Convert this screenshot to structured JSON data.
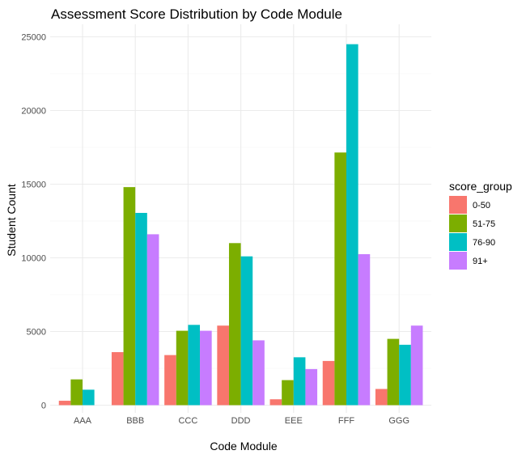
{
  "chart_data": {
    "type": "bar",
    "title": "Assessment Score Distribution by Code Module",
    "xlabel": "Code Module",
    "ylabel": "Student Count",
    "categories": [
      "AAA",
      "BBB",
      "CCC",
      "DDD",
      "EEE",
      "FFF",
      "GGG"
    ],
    "ylim": [
      0,
      25000
    ],
    "yticks": [
      "0",
      "5000",
      "10000",
      "15000",
      "20000",
      "25000"
    ],
    "grid": true,
    "legend": {
      "title": "score_group",
      "position": "right"
    },
    "series": [
      {
        "name": "0-50",
        "color": "#F8766D",
        "values": [
          300,
          3600,
          3400,
          5400,
          400,
          3000,
          1100
        ]
      },
      {
        "name": "51-75",
        "color": "#7CAE00",
        "values": [
          1750,
          14800,
          5050,
          11000,
          1700,
          17150,
          4500
        ]
      },
      {
        "name": "76-90",
        "color": "#00BFC4",
        "values": [
          1050,
          13050,
          5450,
          10100,
          3250,
          24500,
          4100
        ]
      },
      {
        "name": "91+",
        "color": "#C77CFF",
        "values": [
          0,
          11600,
          5050,
          4400,
          2450,
          10250,
          5400
        ]
      }
    ]
  }
}
